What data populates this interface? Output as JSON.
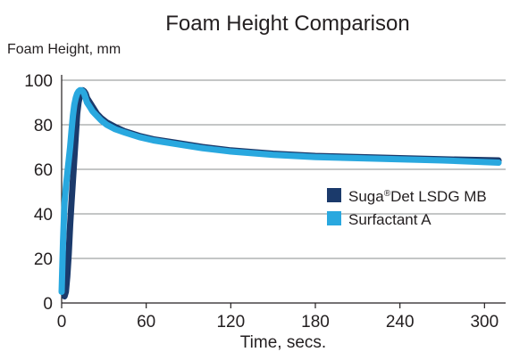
{
  "chart_data": {
    "type": "line",
    "title": "Foam Height Comparison",
    "ylabel": "Foam Height, mm",
    "xlabel": "Time, secs.",
    "xlim": [
      0,
      315
    ],
    "ylim": [
      0,
      100
    ],
    "x_ticks": [
      0,
      60,
      120,
      180,
      240,
      300
    ],
    "y_ticks": [
      0,
      20,
      40,
      60,
      80,
      100
    ],
    "grid": "horizontal",
    "legend_position": "right",
    "series": [
      {
        "name_main": "Suga",
        "name_sup": "®",
        "name_rest": "Det LSDG MB",
        "color": "#1b3a6b",
        "x": [
          2,
          3,
          4,
          5,
          6,
          7,
          8,
          9,
          10,
          11,
          12,
          13,
          14,
          15,
          16,
          17,
          18,
          20,
          22,
          25,
          28,
          32,
          38,
          45,
          55,
          65,
          80,
          100,
          120,
          150,
          180,
          210,
          240,
          270,
          310
        ],
        "y": [
          3,
          5,
          12,
          22,
          35,
          45,
          55,
          65,
          75,
          85,
          90,
          93,
          95,
          95.5,
          95,
          94,
          92,
          90,
          88,
          85,
          83,
          81,
          79,
          77,
          75,
          73.5,
          72,
          70,
          68.5,
          67,
          66,
          65.5,
          65,
          64.5,
          64
        ]
      },
      {
        "name": "Surfactant A",
        "color": "#29a8df",
        "x": [
          0,
          1,
          2,
          3,
          4,
          5,
          6,
          7,
          8,
          9,
          10,
          11,
          12,
          13,
          14,
          15,
          16,
          17,
          18,
          20,
          22,
          25,
          28,
          32,
          38,
          45,
          55,
          65,
          80,
          100,
          120,
          150,
          180,
          210,
          240,
          270,
          310
        ],
        "y": [
          5,
          28,
          45,
          52,
          58,
          64,
          70,
          77,
          84,
          89,
          92,
          94,
          95,
          95.5,
          95.5,
          95,
          94,
          92,
          90,
          88,
          86,
          84,
          82,
          80,
          78,
          76.5,
          74.5,
          73,
          71.5,
          69.5,
          68,
          66.5,
          65.5,
          65,
          64.5,
          64,
          63
        ]
      }
    ]
  }
}
